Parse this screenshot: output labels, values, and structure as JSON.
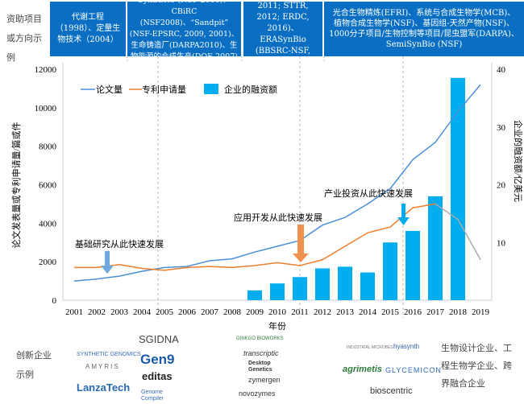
{
  "header": {
    "row_label": "资助项目或方向示例",
    "boxes": [
      "代谢工程（1998）、定量生物技术（2004）",
      "SynBERC (NSF 2006)、CBiRC (NSF2008)、“Sandpit” (NSF-EPSRC, 2009, 2001)、生命铸造厂(DARPA2010)、生物能源的合成生产(DOE 2007)",
      "Synbio (SBIR, 2011; STTR, 2012; ERDC, 2016)、ERASynBio (BBSRC-NSF, 2012)",
      "光合生物精炼(EFRI)、系统与合成生物学(MCB)、植物合成生物学(NSF)、基因组-天然产物(NSF)、1000分子项目/生物控制等项目/昆虫盟军(DARPA)、SemiSynBio (NSF)"
    ]
  },
  "chart_data": {
    "type": "bar+line",
    "x": [
      2001,
      2002,
      2003,
      2004,
      2005,
      2006,
      2007,
      2008,
      2009,
      2010,
      2011,
      2012,
      2013,
      2014,
      2015,
      2016,
      2017,
      2018,
      2019
    ],
    "xlabel": "年份",
    "ylabel": "论文发表量或专利申请量/篇或件",
    "y2label": "企业的融资额/亿美元",
    "ylim": [
      0,
      12000
    ],
    "yticks": [
      0,
      2000,
      4000,
      6000,
      8000,
      10000,
      12000
    ],
    "y2lim": [
      0,
      40
    ],
    "y2ticks": [
      10,
      20,
      30,
      40
    ],
    "series": [
      {
        "name": "论文量",
        "type": "line",
        "color": "#4a90d9",
        "values": [
          1000,
          1100,
          1250,
          1500,
          1700,
          1750,
          2050,
          2150,
          2500,
          2800,
          3100,
          3900,
          4300,
          5000,
          5800,
          7300,
          8200,
          9800,
          11200
        ]
      },
      {
        "name": "专利申请量",
        "type": "line",
        "color": "#f07d2a",
        "values": [
          1700,
          1700,
          1850,
          1650,
          1550,
          1700,
          1750,
          1700,
          1800,
          1950,
          1800,
          2100,
          2800,
          3500,
          3800,
          4800,
          5000,
          null,
          null
        ]
      },
      {
        "name": "专利申请量(未完全公开)",
        "type": "line",
        "color": "#aaaaaa",
        "legend": false,
        "values": [
          null,
          null,
          null,
          null,
          null,
          null,
          null,
          null,
          null,
          null,
          null,
          null,
          null,
          null,
          null,
          null,
          5000,
          4200,
          2100
        ]
      },
      {
        "name": "企业的融资额",
        "type": "bar",
        "axis": "right",
        "color": "#00adef",
        "values": [
          null,
          null,
          null,
          null,
          null,
          null,
          null,
          null,
          1.7,
          2.9,
          4,
          5.5,
          5.8,
          4.8,
          10,
          12,
          18,
          38.5,
          null
        ]
      }
    ],
    "annotations": [
      "基础研究从此快速发展",
      "应用开发从此快速发展",
      "产业投资从此快速发展"
    ],
    "legend": "top-left"
  },
  "companies": {
    "row_label": "创新企业示例",
    "logos": [
      "SYNTHETIC GENOMICS",
      "AMYRIS",
      "LanzaTech",
      "SGIDNA",
      "Gen9",
      "editas",
      "Genome Compiler",
      "GINKGO BIOWORKS",
      "transcriptic",
      "Desktop Genetics",
      "zymergen",
      "novozymes",
      "INDUSTRIAL MICROBES",
      "hyasynth",
      "agrimetis",
      "GLYCEMICON",
      "bioscentric"
    ],
    "note": "生物设计企业、工程生物学企业、跨界融合企业"
  }
}
